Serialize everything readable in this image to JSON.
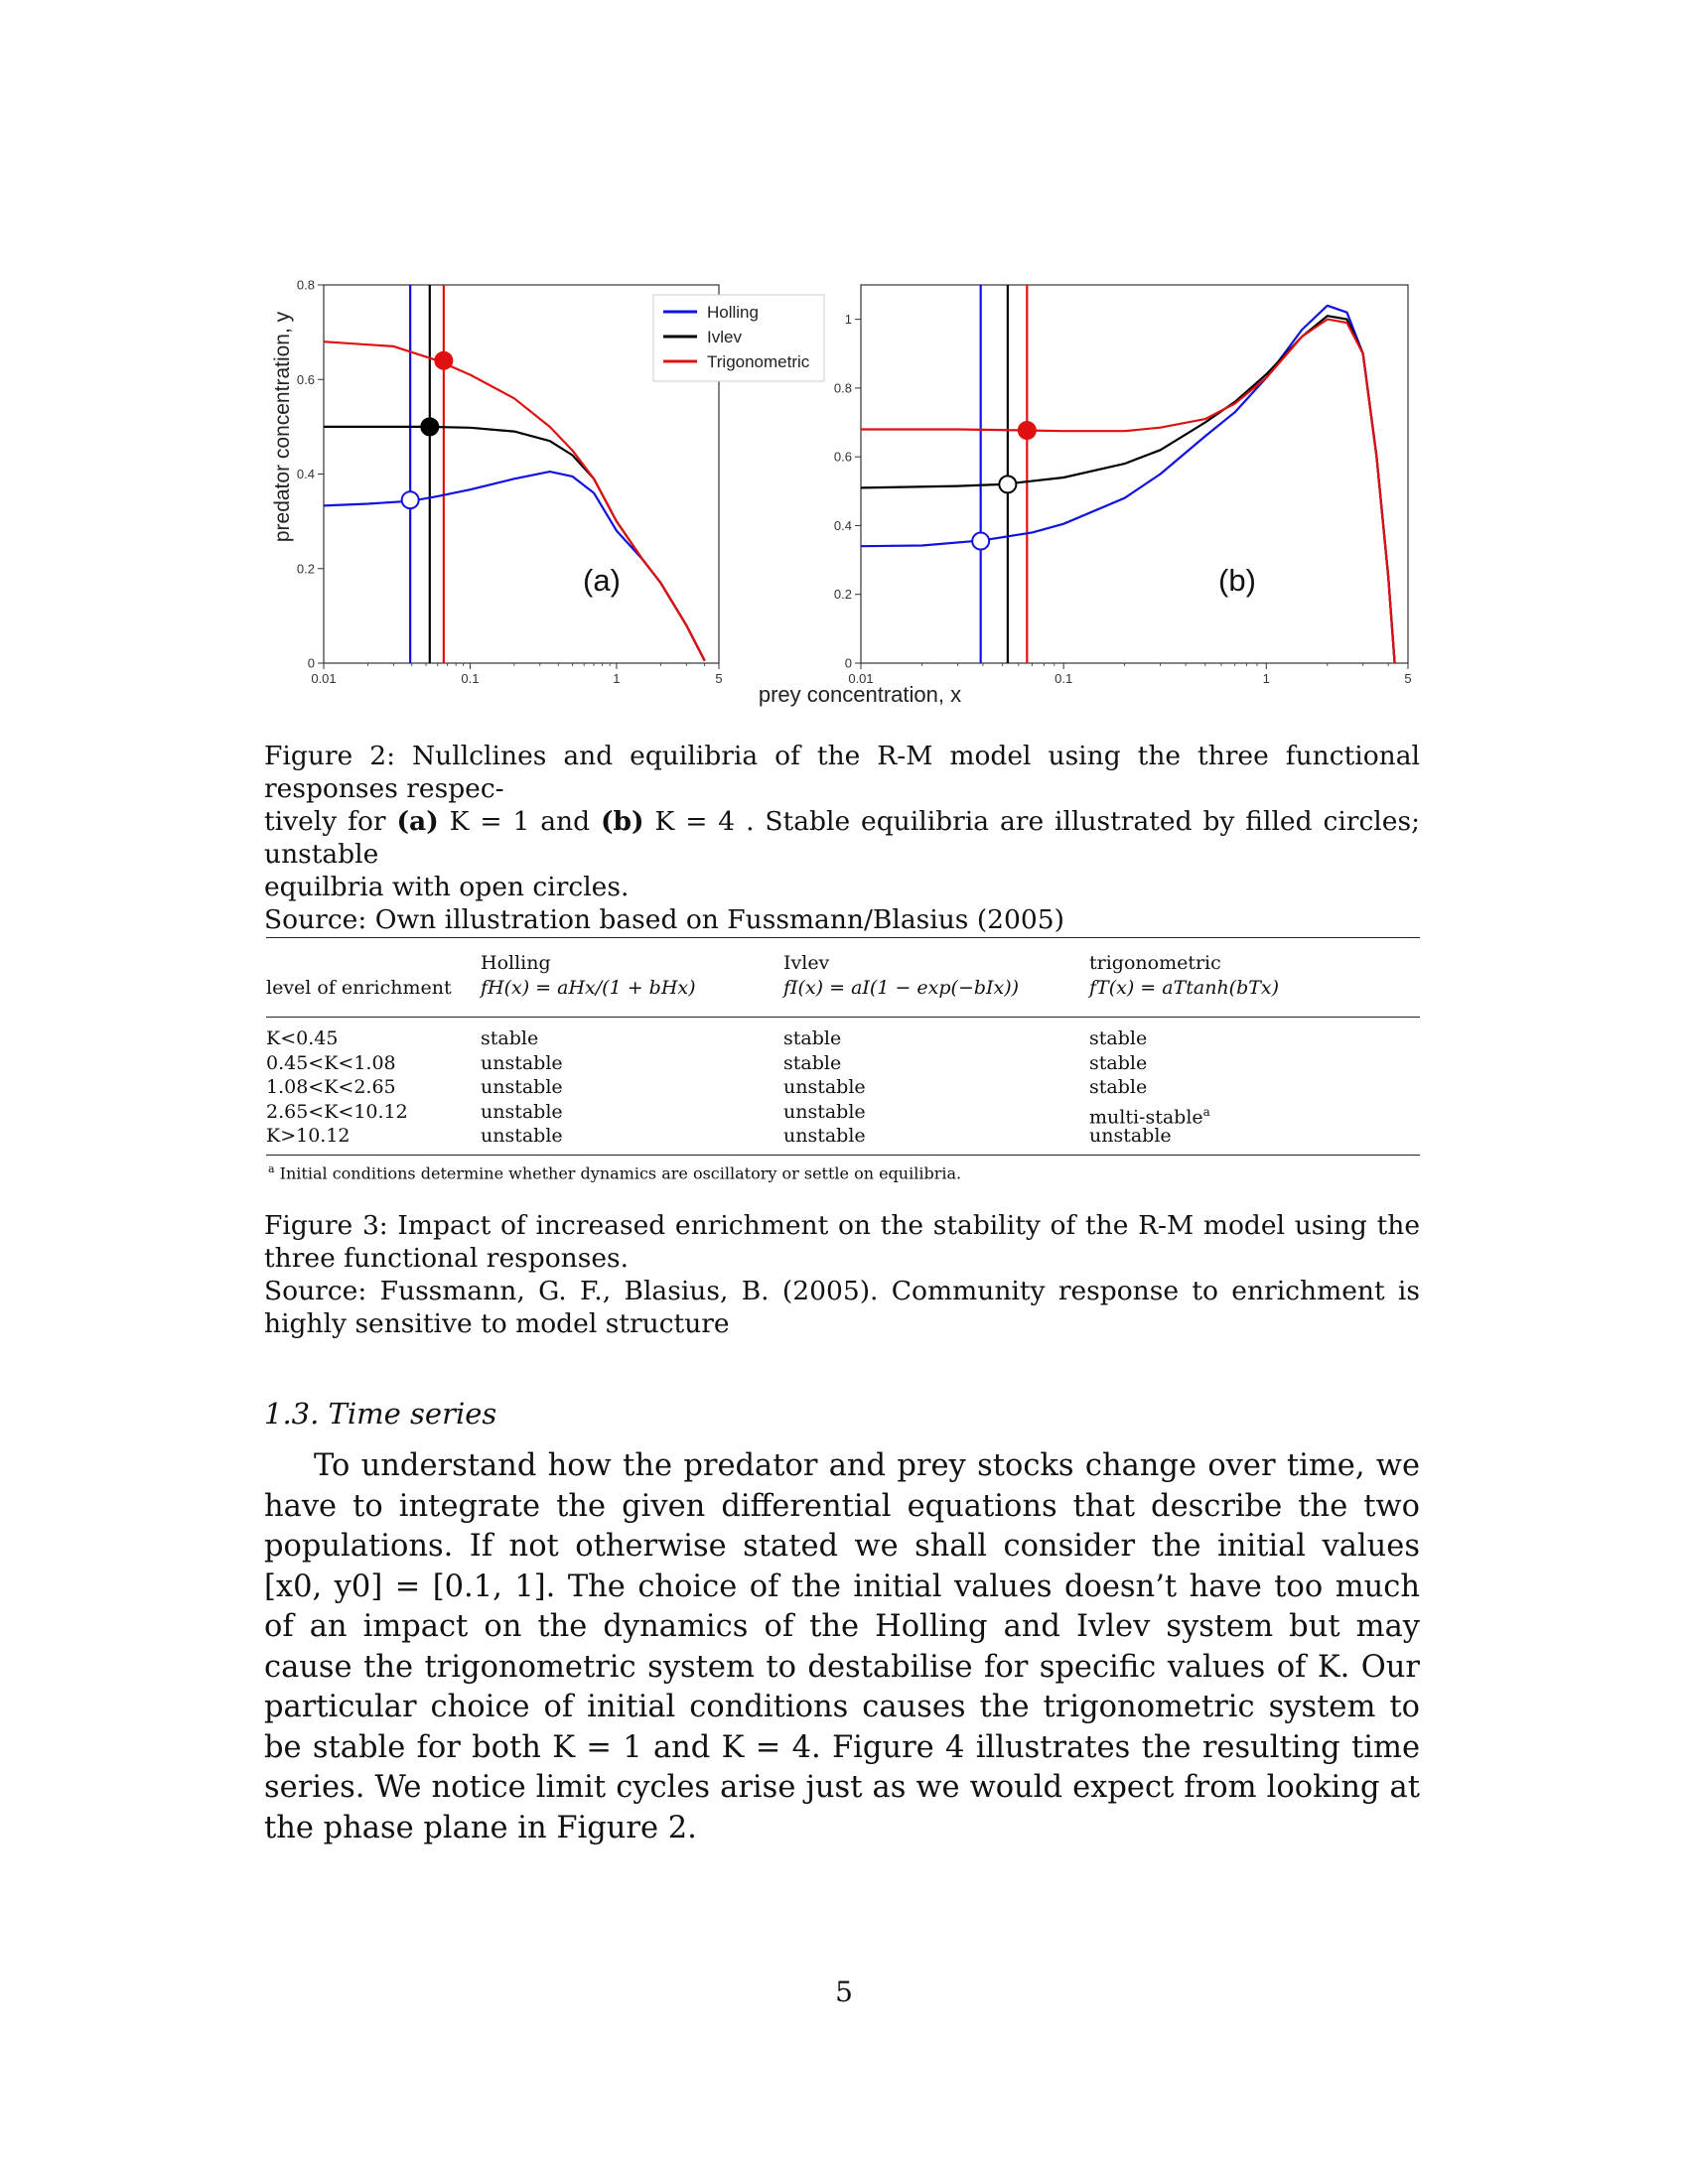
{
  "figure": {
    "y_label": "predator concentration, y",
    "x_label": "prey concentration, x",
    "legend": [
      "Holling",
      "Ivlev",
      "Trigonometric"
    ],
    "panel_labels": [
      "(a)",
      "(b)"
    ],
    "colors": {
      "holling": "#1010e0",
      "ivlev": "#000000",
      "trig": "#e01010"
    }
  },
  "chart_data": [
    {
      "type": "line",
      "panel": "(a)",
      "x_scale": "log",
      "xlim": [
        0.01,
        5
      ],
      "ylim": [
        0,
        0.8
      ],
      "x_ticks": [
        "0.01",
        "0.1",
        "1",
        "5"
      ],
      "y_ticks": [
        "0",
        "0.2",
        "0.4",
        "0.6",
        "0.8"
      ],
      "series": [
        {
          "name": "Holling",
          "x": [
            0.01,
            0.02,
            0.04,
            0.06,
            0.1,
            0.2,
            0.35,
            0.5,
            0.7,
            1.0,
            1.5,
            2.0,
            3.0,
            4.0
          ],
          "y": [
            0.333,
            0.337,
            0.343,
            0.353,
            0.367,
            0.39,
            0.405,
            0.395,
            0.36,
            0.28,
            0.22,
            0.17,
            0.08,
            0.005
          ]
        },
        {
          "name": "Ivlev",
          "x": [
            0.01,
            0.03,
            0.05,
            0.1,
            0.2,
            0.35,
            0.5,
            0.7,
            1.0,
            1.5,
            2.0,
            3.0,
            4.0
          ],
          "y": [
            0.5,
            0.5,
            0.5,
            0.498,
            0.49,
            0.47,
            0.44,
            0.39,
            0.3,
            0.22,
            0.17,
            0.08,
            0.005
          ]
        },
        {
          "name": "Trigonometric",
          "x": [
            0.01,
            0.03,
            0.06,
            0.1,
            0.2,
            0.35,
            0.5,
            0.7,
            1.0,
            1.5,
            2.0,
            3.0,
            4.0
          ],
          "y": [
            0.68,
            0.67,
            0.64,
            0.61,
            0.56,
            0.5,
            0.45,
            0.39,
            0.3,
            0.22,
            0.17,
            0.08,
            0.005
          ]
        }
      ],
      "vlines": [
        {
          "series": "Holling",
          "x": 0.039
        },
        {
          "series": "Ivlev",
          "x": 0.053
        },
        {
          "series": "Trigonometric",
          "x": 0.066
        }
      ],
      "equilibria": [
        {
          "series": "Holling",
          "x": 0.039,
          "y": 0.345,
          "stable": false
        },
        {
          "series": "Ivlev",
          "x": 0.053,
          "y": 0.5,
          "stable": true
        },
        {
          "series": "Trigonometric",
          "x": 0.066,
          "y": 0.64,
          "stable": true
        }
      ]
    },
    {
      "type": "line",
      "panel": "(b)",
      "x_scale": "log",
      "xlim": [
        0.01,
        5
      ],
      "ylim": [
        0,
        1.1
      ],
      "x_ticks": [
        "0.01",
        "0.1",
        "1",
        "5"
      ],
      "y_ticks": [
        "0",
        "0.2",
        "0.4",
        "0.6",
        "0.8",
        "1"
      ],
      "series": [
        {
          "name": "Holling",
          "x": [
            0.01,
            0.02,
            0.04,
            0.07,
            0.1,
            0.2,
            0.3,
            0.5,
            0.7,
            1.0,
            1.5,
            2.0,
            2.5,
            3.0,
            3.5,
            4.0,
            4.3
          ],
          "y": [
            0.34,
            0.342,
            0.357,
            0.38,
            0.405,
            0.48,
            0.55,
            0.66,
            0.73,
            0.83,
            0.97,
            1.04,
            1.02,
            0.9,
            0.6,
            0.25,
            0.0
          ]
        },
        {
          "name": "Ivlev",
          "x": [
            0.01,
            0.03,
            0.05,
            0.1,
            0.2,
            0.3,
            0.5,
            0.7,
            1.0,
            1.5,
            2.0,
            2.5,
            3.0,
            3.5,
            4.0,
            4.3
          ],
          "y": [
            0.51,
            0.515,
            0.52,
            0.54,
            0.58,
            0.62,
            0.7,
            0.76,
            0.84,
            0.95,
            1.01,
            1.0,
            0.9,
            0.6,
            0.25,
            0.0
          ]
        },
        {
          "name": "Trigonometric",
          "x": [
            0.01,
            0.03,
            0.065,
            0.1,
            0.2,
            0.3,
            0.5,
            0.7,
            1.0,
            1.5,
            2.0,
            2.5,
            3.0,
            3.5,
            4.0,
            4.3
          ],
          "y": [
            0.68,
            0.68,
            0.677,
            0.675,
            0.675,
            0.685,
            0.71,
            0.755,
            0.83,
            0.95,
            1.0,
            0.99,
            0.9,
            0.6,
            0.25,
            0.0
          ]
        }
      ],
      "vlines": [
        {
          "series": "Holling",
          "x": 0.039
        },
        {
          "series": "Ivlev",
          "x": 0.053
        },
        {
          "series": "Trigonometric",
          "x": 0.066
        }
      ],
      "equilibria": [
        {
          "series": "Holling",
          "x": 0.039,
          "y": 0.355,
          "stable": false
        },
        {
          "series": "Ivlev",
          "x": 0.053,
          "y": 0.52,
          "stable": false
        },
        {
          "series": "Trigonometric",
          "x": 0.066,
          "y": 0.677,
          "stable": true
        }
      ]
    }
  ],
  "caption2": {
    "line1a": "Figure 2: Nullclines and equilibria of the R-M model using the three functional responses respec-",
    "t_for": "tively for ",
    "a": "(a)",
    "k1": " K = 1 and ",
    "b": "(b)",
    "k4": " K = 4 . Stable equilibria are illustrated by filled circles; unstable",
    "line3": "equilbria with open circles.",
    "source": "Source: Own illustration based on Fussmann/Blasius (2005)"
  },
  "table": {
    "headers": {
      "col0": "level of enrichment",
      "h1_name": "Holling",
      "h1_formula": "fH(x) = aHx/(1 + bHx)",
      "h2_name": "Ivlev",
      "h2_formula": "fI(x) = aI(1 − exp(−bIx))",
      "h3_name": "trigonometric",
      "h3_formula": "fT(x) = aTtanh(bTx)"
    },
    "rows": [
      {
        "k": "K<0.45",
        "h": "stable",
        "i": "stable",
        "t": "stable"
      },
      {
        "k": "0.45<K<1.08",
        "h": "unstable",
        "i": "stable",
        "t": "stable"
      },
      {
        "k": "1.08<K<2.65",
        "h": "unstable",
        "i": "unstable",
        "t": "stable"
      },
      {
        "k": "2.65<K<10.12",
        "h": "unstable",
        "i": "unstable",
        "t": "multi-stable"
      },
      {
        "k": "K>10.12",
        "h": "unstable",
        "i": "unstable",
        "t": "unstable"
      }
    ],
    "footnote_mark": "a",
    "footnote": "Initial conditions determine whether dynamics are oscillatory or settle on equilibria."
  },
  "caption3": {
    "line1": "Figure 3: Impact of increased enrichment on the stability of the R-M model using the three functional responses.",
    "source": "Source: Fussmann, G. F., Blasius, B. (2005). Community response to enrichment is highly sensitive to model structure"
  },
  "section": {
    "heading": "1.3. Time series",
    "paragraph": "To understand how the predator and prey stocks change over time, we have to integrate the given differential equations that describe the two populations. If not otherwise stated we shall consider the initial values [x0, y0] = [0.1, 1]. The choice of the initial values doesn’t have too much of an impact on the dynamics of the Holling and Ivlev system but may cause the trigonometric system to destabilise for specific values of K. Our particular choice of initial conditions causes the trigonometric system to be stable for both K = 1 and K = 4. Figure 4 illustrates the resulting time series. We notice limit cycles arise just as we would expect from looking at the phase plane in Figure 2."
  },
  "page_number": "5"
}
